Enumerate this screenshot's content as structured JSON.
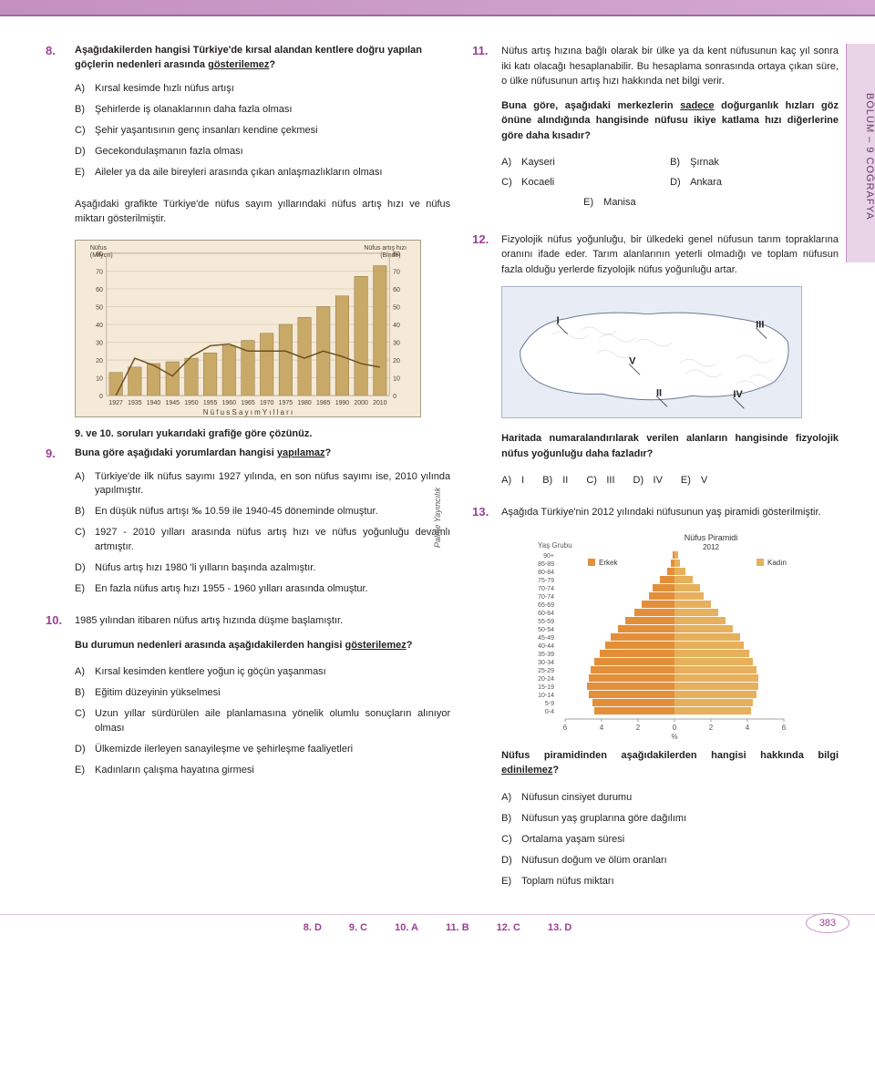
{
  "side_tab": "BÖLÜM – 9    COĞRAFYA",
  "publisher": "Palme Yayıncılık",
  "page_number": "383",
  "q8": {
    "num": "8.",
    "stem_pre": "Aşağıdakilerden hangisi Türkiye'de kırsal alandan kentlere doğru yapılan göçlerin nedenleri arasında ",
    "stem_u": "gösterilemez",
    "stem_post": "?",
    "opts": [
      {
        "l": "A)",
        "t": "Kırsal kesimde hızlı nüfus artışı"
      },
      {
        "l": "B)",
        "t": "Şehirlerde iş olanaklarının daha fazla olması"
      },
      {
        "l": "C)",
        "t": "Şehir yaşantısının genç insanları kendine çekmesi"
      },
      {
        "l": "D)",
        "t": "Gecekondulaşmanın fazla olması"
      },
      {
        "l": "E)",
        "t": "Aileler ya da aile bireyleri arasında çıkan anlaşmazlıkların olması"
      }
    ]
  },
  "chart_intro": "Aşağıdaki grafikte Türkiye'de nüfus sayım yıllarındaki nüfus artış hızı ve nüfus miktarı gösterilmiştir.",
  "chart": {
    "left_label": "Nüfus (Milyon)",
    "right_label": "Nüfus artış hızı (Binde)",
    "x_label": "N ü f u s   S a y ı m   Y ı l l a r ı",
    "y_ticks": [
      0,
      10,
      20,
      30,
      40,
      50,
      60,
      70,
      80
    ],
    "years": [
      "1927",
      "1935",
      "1940",
      "1945",
      "1950",
      "1955",
      "1960",
      "1965",
      "1970",
      "1975",
      "1980",
      "1985",
      "1990",
      "2000",
      "2010"
    ],
    "pop_values": [
      13,
      16,
      18,
      19,
      21,
      24,
      28,
      31,
      35,
      40,
      44,
      50,
      56,
      67,
      73
    ],
    "rate_values": [
      0,
      21,
      17,
      11,
      22,
      28,
      29,
      25,
      25,
      25,
      21,
      25,
      22,
      18,
      16
    ],
    "bar_color": "#c9a968",
    "bar_edge": "#8f7440",
    "line_color": "#6b5020",
    "bg_color": "#f5ead8",
    "grid_color": "#cabd9f"
  },
  "chart_note": "9. ve 10. soruları yukarıdaki grafiğe göre çözünüz.",
  "q9": {
    "num": "9.",
    "stem_pre": "Buna göre aşağıdaki yorumlardan hangisi ",
    "stem_u": "yapılamaz",
    "stem_post": "?",
    "opts": [
      {
        "l": "A)",
        "t": "Türkiye'de ilk nüfus sayımı 1927 yılında, en son nüfus sayımı ise, 2010 yılında yapılmıştır."
      },
      {
        "l": "B)",
        "t": "En düşük nüfus artışı ‰ 10.59 ile 1940-45 döneminde olmuştur."
      },
      {
        "l": "C)",
        "t": "1927 - 2010 yılları arasında nüfus artış hızı ve nüfus yoğunluğu devamlı artmıştır."
      },
      {
        "l": "D)",
        "t": "Nüfus artış hızı 1980 'li yılların başında azalmıştır."
      },
      {
        "l": "E)",
        "t": "En fazla nüfus artış hızı 1955 - 1960 yılları arasında olmuştur."
      }
    ]
  },
  "q10": {
    "num": "10.",
    "intro": "1985 yılından itibaren nüfus artış hızında düşme başlamıştır.",
    "stem_pre": "Bu durumun nedenleri arasında aşağıdakilerden hangisi ",
    "stem_u": "gösterilemez",
    "stem_post": "?",
    "opts": [
      {
        "l": "A)",
        "t": "Kırsal kesimden kentlere yoğun iç göçün yaşanması"
      },
      {
        "l": "B)",
        "t": "Eğitim düzeyinin yükselmesi"
      },
      {
        "l": "C)",
        "t": "Uzun yıllar sürdürülen aile planlamasına yönelik olumlu sonuçların alınıyor olması"
      },
      {
        "l": "D)",
        "t": "Ülkemizde ilerleyen sanayileşme ve şehirleşme faaliyetleri"
      },
      {
        "l": "E)",
        "t": "Kadınların çalışma hayatına girmesi"
      }
    ]
  },
  "q11": {
    "num": "11.",
    "intro": "Nüfus artış hızına bağlı olarak bir ülke ya da kent nüfusunun kaç yıl sonra iki katı olacağı hesaplanabilir. Bu hesaplama sonrasında ortaya çıkan süre, o ülke nüfusunun artış hızı hakkında net bilgi verir.",
    "stem_pre": "Buna göre, aşağıdaki merkezlerin ",
    "stem_u": "sadece",
    "stem_post": " doğurganlık hızları göz önüne alındığında hangisinde nüfusu ikiye katlama hızı diğerlerine göre daha kısadır?",
    "opts": [
      {
        "l": "A)",
        "t": "Kayseri"
      },
      {
        "l": "B)",
        "t": "Şırnak"
      },
      {
        "l": "C)",
        "t": "Kocaeli"
      },
      {
        "l": "D)",
        "t": "Ankara"
      },
      {
        "l": "E)",
        "t": "Manisa"
      }
    ]
  },
  "q12": {
    "num": "12.",
    "intro": "Fizyolojik nüfus yoğunluğu, bir ülkedeki genel nüfusun tarım topraklarına oranını ifade eder. Tarım alanlarının yeterli olmadığı ve toplam nüfusun fazla olduğu yerlerde fizyolojik nüfus yoğunluğu artar.",
    "stem": "Haritada numaralandırılarak verilen alanların hangisinde fizyolojik nüfus yoğunluğu daha fazladır?",
    "map": {
      "bg": "#e8edf5",
      "land_fill": "#ffffff",
      "land_stroke": "#6a7a95",
      "labels": [
        "I",
        "II",
        "III",
        "IV",
        "V"
      ],
      "positions": [
        [
          60,
          40
        ],
        [
          170,
          120
        ],
        [
          280,
          45
        ],
        [
          255,
          122
        ],
        [
          140,
          85
        ]
      ]
    },
    "opts": [
      {
        "l": "A)",
        "t": "I"
      },
      {
        "l": "B)",
        "t": "II"
      },
      {
        "l": "C)",
        "t": "III"
      },
      {
        "l": "D)",
        "t": "IV"
      },
      {
        "l": "E)",
        "t": "V"
      }
    ]
  },
  "q13": {
    "num": "13.",
    "intro": "Aşağıda Türkiye'nin 2012 yılındaki nüfusunun yaş piramidi gösterilmiştir.",
    "pyr": {
      "title": "Nüfus Piramidi",
      "year": "2012",
      "left_leg": "Erkek",
      "right_leg": "Kadın",
      "axis_label": "%",
      "x_ticks": [
        6,
        4,
        2,
        0,
        2,
        4,
        6
      ],
      "age_groups": [
        "90+",
        "85-89",
        "80-84",
        "75-79",
        "70-74",
        "70-74",
        "65-69",
        "60-64",
        "55-59",
        "50-54",
        "45-49",
        "40-44",
        "35-39",
        "30-34",
        "25-29",
        "20-24",
        "15-19",
        "10-14",
        "5-9",
        "0-4"
      ],
      "male_pct": [
        0.1,
        0.2,
        0.4,
        0.8,
        1.2,
        1.4,
        1.8,
        2.2,
        2.7,
        3.1,
        3.5,
        3.8,
        4.1,
        4.4,
        4.6,
        4.7,
        4.8,
        4.7,
        4.5,
        4.4
      ],
      "female_pct": [
        0.2,
        0.3,
        0.6,
        1.0,
        1.4,
        1.6,
        2.0,
        2.4,
        2.8,
        3.2,
        3.6,
        3.8,
        4.1,
        4.3,
        4.5,
        4.6,
        4.6,
        4.5,
        4.3,
        4.2
      ],
      "male_color": "#e38f3a",
      "female_color": "#e6b05c",
      "axis_color": "#a0a0a0",
      "label_fontsize": 7
    },
    "stem_pre": "Nüfus piramidinden aşağıdakilerden hangisi hakkında bilgi ",
    "stem_u": "edinilemez",
    "stem_post": "?",
    "opts": [
      {
        "l": "A)",
        "t": "Nüfusun cinsiyet durumu"
      },
      {
        "l": "B)",
        "t": "Nüfusun yaş gruplarına göre dağılımı"
      },
      {
        "l": "C)",
        "t": "Ortalama yaşam süresi"
      },
      {
        "l": "D)",
        "t": "Nüfusun doğum ve ölüm oranları"
      },
      {
        "l": "E)",
        "t": "Toplam nüfus miktarı"
      }
    ]
  },
  "answers": [
    "8. D",
    "9. C",
    "10. A",
    "11. B",
    "12. C",
    "13. D"
  ]
}
